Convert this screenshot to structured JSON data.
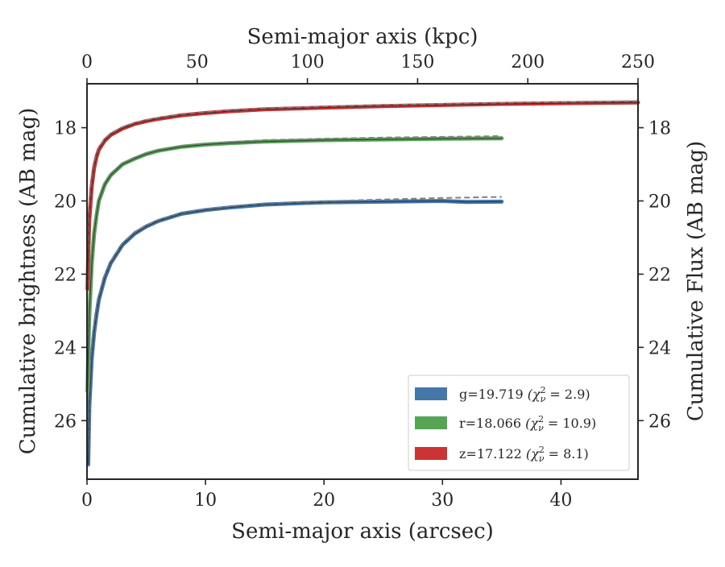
{
  "chart_data": {
    "type": "line",
    "xlabel": "Semi-major axis (arcsec)",
    "x2label": "Semi-major axis (kpc)",
    "ylabel": "Cumulative brightness (AB mag)",
    "y2label": "Cumulative Flux (AB mag)",
    "xlim": [
      0,
      46.5
    ],
    "x2lim": [
      0,
      250
    ],
    "ylim": [
      27.6,
      16.8
    ],
    "y_inverted": true,
    "xticks": [
      "0",
      "10",
      "20",
      "30",
      "40"
    ],
    "x2ticks": [
      "0",
      "50",
      "100",
      "150",
      "200",
      "250"
    ],
    "yticks": [
      "18",
      "20",
      "22",
      "24",
      "26"
    ],
    "y2ticks": [
      "18",
      "20",
      "22",
      "24",
      "26"
    ],
    "legend_position": "lower-right",
    "series": [
      {
        "name": "g=19.719 (χ²ν = 2.9)",
        "legend_main": "g=19.719",
        "legend_paren": "(χ",
        "legend_sup": "2",
        "legend_sub": "ν",
        "legend_tail": " = 2.9)",
        "color": "#4477aa",
        "x": [
          0.1,
          0.2,
          0.4,
          0.6,
          0.8,
          1.0,
          1.5,
          2,
          3,
          4,
          5,
          6,
          8,
          10,
          12,
          15,
          18,
          20,
          25,
          30,
          32,
          35
        ],
        "y": [
          27.2,
          25.6,
          24.3,
          23.6,
          23.1,
          22.7,
          22.1,
          21.7,
          21.2,
          20.9,
          20.7,
          20.55,
          20.35,
          20.25,
          20.18,
          20.1,
          20.06,
          20.04,
          20.02,
          20.0,
          20.03,
          20.02
        ]
      },
      {
        "name": "r=18.066 (χ²ν = 10.9)",
        "legend_main": "r=18.066",
        "legend_paren": "(χ",
        "legend_sup": "2",
        "legend_sub": "ν",
        "legend_tail": " = 10.9)",
        "color": "#55a555",
        "x": [
          0.05,
          0.1,
          0.2,
          0.4,
          0.6,
          0.8,
          1.0,
          1.5,
          2,
          3,
          4,
          5,
          6,
          8,
          10,
          12,
          15,
          20,
          25,
          30,
          35
        ],
        "y": [
          25.2,
          24.2,
          23.1,
          21.7,
          20.9,
          20.4,
          20.0,
          19.55,
          19.3,
          19.0,
          18.85,
          18.72,
          18.63,
          18.52,
          18.46,
          18.42,
          18.38,
          18.34,
          18.32,
          18.3,
          18.29
        ]
      },
      {
        "name": "z=17.122 (χ²ν = 8.1)",
        "legend_main": "z=17.122",
        "legend_paren": "(χ",
        "legend_sup": "2",
        "legend_sub": "ν",
        "legend_tail": " = 8.1)",
        "color": "#cc3333",
        "x": [
          0.05,
          0.1,
          0.2,
          0.4,
          0.6,
          0.8,
          1.0,
          1.5,
          2,
          3,
          4,
          5,
          6,
          8,
          10,
          12,
          15,
          20,
          25,
          30,
          35,
          40,
          46.5
        ],
        "y": [
          22.4,
          21.5,
          20.5,
          19.6,
          19.1,
          18.8,
          18.6,
          18.35,
          18.2,
          18.02,
          17.9,
          17.82,
          17.76,
          17.66,
          17.6,
          17.55,
          17.5,
          17.45,
          17.41,
          17.38,
          17.35,
          17.33,
          17.31
        ]
      }
    ],
    "models": [
      {
        "color": "#808080",
        "x": [
          0.1,
          0.2,
          0.4,
          0.6,
          0.8,
          1.0,
          1.5,
          2,
          3,
          4,
          5,
          6,
          8,
          10,
          12,
          15,
          20,
          25,
          30,
          35
        ],
        "y": [
          26.9,
          25.4,
          24.2,
          23.5,
          23.05,
          22.65,
          22.05,
          21.65,
          21.15,
          20.85,
          20.66,
          20.52,
          20.34,
          20.23,
          20.16,
          20.09,
          20.01,
          19.96,
          19.92,
          19.89
        ]
      },
      {
        "color": "#808080",
        "x": [
          0.05,
          0.1,
          0.2,
          0.4,
          0.6,
          0.8,
          1.0,
          1.5,
          2,
          3,
          4,
          5,
          6,
          8,
          10,
          12,
          15,
          20,
          25,
          30,
          35
        ],
        "y": [
          25.0,
          24.0,
          22.9,
          21.6,
          20.85,
          20.35,
          19.97,
          19.5,
          19.25,
          18.97,
          18.82,
          18.7,
          18.61,
          18.5,
          18.44,
          18.39,
          18.34,
          18.3,
          18.27,
          18.25,
          18.23
        ]
      },
      {
        "color": "#808080",
        "x": [
          0.05,
          0.1,
          0.2,
          0.4,
          0.6,
          0.8,
          1.0,
          1.5,
          2,
          3,
          4,
          5,
          6,
          8,
          10,
          12,
          15,
          20,
          25,
          30,
          35,
          40,
          46.5
        ],
        "y": [
          22.3,
          21.4,
          20.4,
          19.5,
          19.05,
          18.75,
          18.55,
          18.3,
          18.15,
          17.98,
          17.87,
          17.79,
          17.73,
          17.64,
          17.58,
          17.53,
          17.48,
          17.42,
          17.38,
          17.35,
          17.32,
          17.3,
          17.27
        ]
      }
    ]
  }
}
